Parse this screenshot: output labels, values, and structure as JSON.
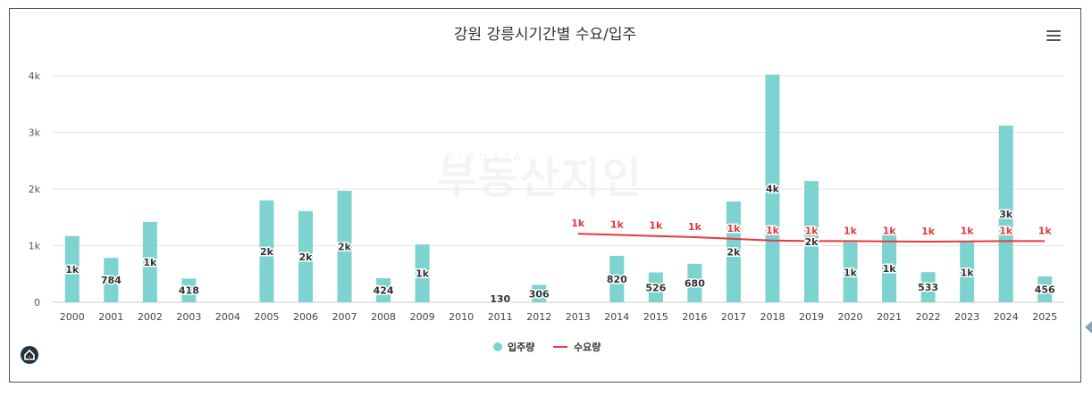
{
  "chart_data": {
    "type": "bar",
    "title": "강원 강릉시기간별 수요/입주",
    "categories": [
      "2000",
      "2001",
      "2002",
      "2003",
      "2004",
      "2005",
      "2006",
      "2007",
      "2008",
      "2009",
      "2010",
      "2011",
      "2012",
      "2013",
      "2014",
      "2015",
      "2016",
      "2017",
      "2018",
      "2019",
      "2020",
      "2021",
      "2022",
      "2023",
      "2024",
      "2025"
    ],
    "series": [
      {
        "name": "입주량",
        "type": "bar",
        "color": "#7dd3cf",
        "values": [
          1170,
          784,
          1420,
          418,
          0,
          1800,
          1610,
          1970,
          424,
          1020,
          0,
          130,
          306,
          0,
          820,
          526,
          680,
          1780,
          4020,
          2140,
          1060,
          1200,
          533,
          1060,
          3120,
          456
        ],
        "labels": [
          "1k",
          "784",
          "1k",
          "418",
          "",
          "2k",
          "2k",
          "2k",
          "424",
          "1k",
          "",
          "130",
          "306",
          "",
          "820",
          "526",
          "680",
          "2k",
          "4k",
          "2k",
          "1k",
          "1k",
          "533",
          "1k",
          "3k",
          "456"
        ]
      },
      {
        "name": "수요량",
        "type": "line",
        "color": "#e8383d",
        "values": [
          null,
          null,
          null,
          null,
          null,
          null,
          null,
          null,
          null,
          null,
          null,
          null,
          null,
          1210,
          1190,
          1170,
          1150,
          1120,
          1090,
          1080,
          1080,
          1075,
          1070,
          1075,
          1080,
          1080
        ],
        "labels": [
          "",
          "",
          "",
          "",
          "",
          "",
          "",
          "",
          "",
          "",
          "",
          "",
          "",
          "1k",
          "1k",
          "1k",
          "1k",
          "1k",
          "1k",
          "1k",
          "1k",
          "1k",
          "1k",
          "1k",
          "1k",
          "1k"
        ]
      }
    ],
    "y_ticks": [
      "0",
      "1k",
      "2k",
      "3k",
      "4k"
    ],
    "ylim": [
      0,
      4000
    ],
    "grid": true,
    "legend": "bottom-center"
  }
}
